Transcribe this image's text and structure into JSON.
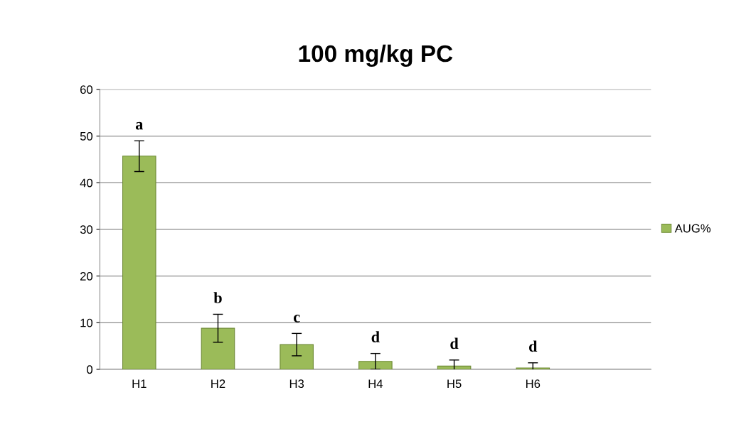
{
  "chart_data": {
    "type": "bar",
    "title": "100 mg/kg PC",
    "categories": [
      "H1",
      "H2",
      "H3",
      "H4",
      "H5",
      "H6",
      null
    ],
    "series": [
      {
        "name": "AUG%",
        "color": "#9bbb59",
        "values": [
          45.7,
          8.8,
          5.3,
          1.7,
          0.7,
          0.3,
          null
        ],
        "errors": [
          3.3,
          3.0,
          2.4,
          1.7,
          1.3,
          1.1,
          null
        ]
      }
    ],
    "ylim": [
      0,
      60
    ],
    "yticks": [
      0,
      10,
      20,
      30,
      40,
      50,
      60
    ],
    "grid": "y",
    "legend": "right",
    "annotations": [
      "a",
      "b",
      "c",
      "d",
      "d",
      "d"
    ]
  }
}
